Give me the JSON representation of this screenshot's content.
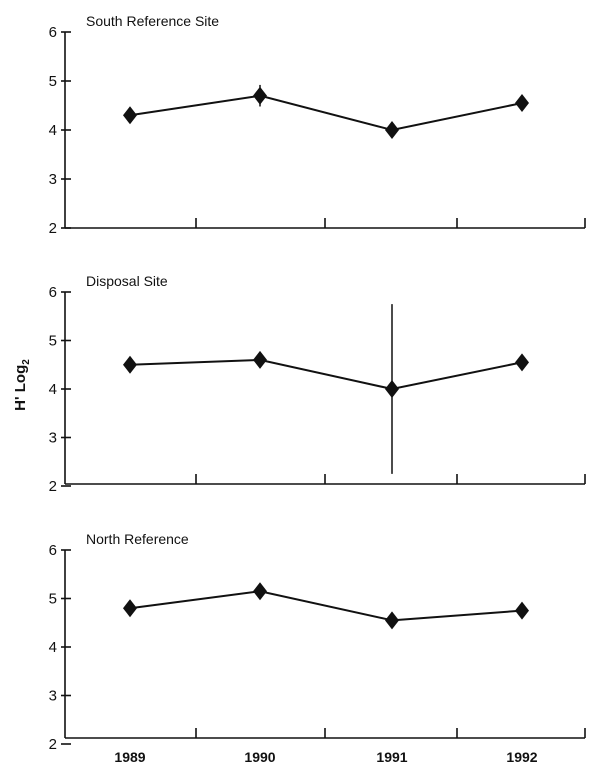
{
  "chart_data": {
    "type": "line",
    "ylabel": "H' Log",
    "ylabel_subscript": "2",
    "x": [
      "1989",
      "1990",
      "1991",
      "1992"
    ],
    "ylim": [
      2,
      6
    ],
    "yticks": [
      2,
      3,
      4,
      5,
      6
    ],
    "grid": false,
    "panels": [
      {
        "title": "South Reference Site",
        "values": [
          4.3,
          4.7,
          4.0,
          4.55
        ],
        "error": [
          0.1,
          0.22,
          0.14,
          0.12
        ]
      },
      {
        "title": "Disposal Site",
        "values": [
          4.5,
          4.6,
          4.0,
          4.55
        ],
        "error": [
          0.08,
          0.1,
          1.75,
          0.15
        ]
      },
      {
        "title": "North Reference",
        "values": [
          4.8,
          5.15,
          4.55,
          4.75
        ],
        "error": [
          0.08,
          0.12,
          0.15,
          0.15
        ]
      }
    ]
  }
}
